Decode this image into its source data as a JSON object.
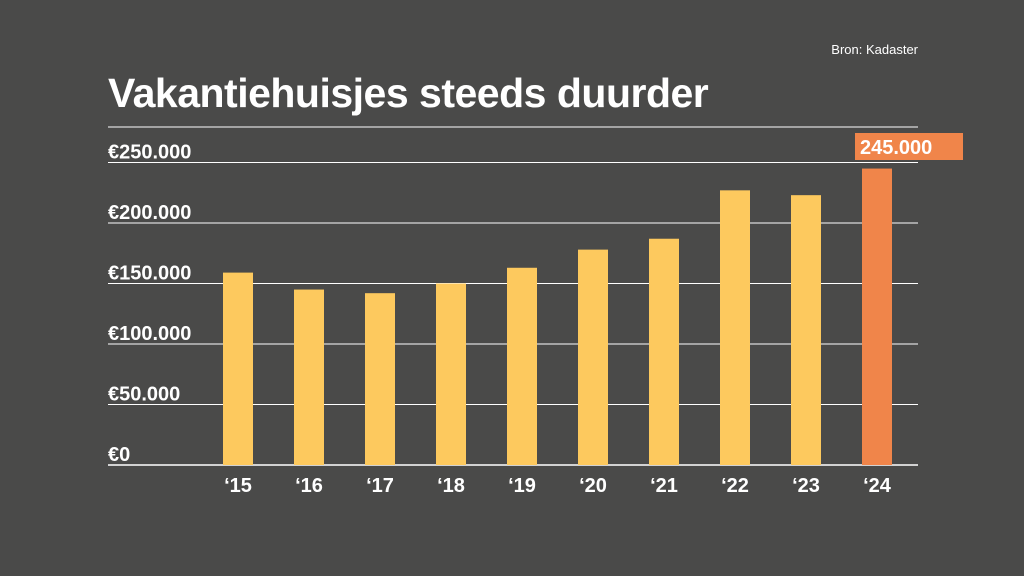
{
  "header": {
    "source": "Bron: Kadaster",
    "title": "Vakantiehuisjes steeds duurder"
  },
  "colors": {
    "background": "#4a4a49",
    "bar": "#fdc95e",
    "highlight": "#f0854a",
    "grid": "#ffffff",
    "text": "#ffffff"
  },
  "chart_data": {
    "type": "bar",
    "title": "Vakantiehuisjes steeds duurder",
    "categories": [
      "‘15",
      "‘16",
      "‘17",
      "‘18",
      "‘19",
      "‘20",
      "‘21",
      "‘22",
      "‘23",
      "‘24"
    ],
    "values": [
      159000,
      145000,
      142000,
      150000,
      163000,
      178000,
      187000,
      227000,
      223000,
      245000
    ],
    "yticks": [
      0,
      50000,
      100000,
      150000,
      200000,
      250000
    ],
    "ytick_labels": [
      "€0",
      "€50.000",
      "€100.000",
      "€150.000",
      "€200.000",
      "€250.000"
    ],
    "ylim": [
      0,
      280000
    ],
    "highlight_index": 9,
    "highlight_label": "245.000",
    "grid": true,
    "legend": "none"
  }
}
